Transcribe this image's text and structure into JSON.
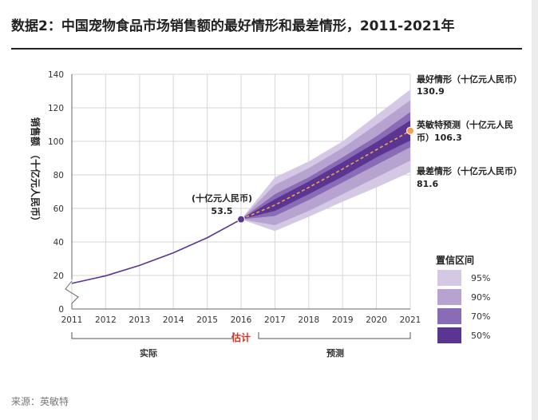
{
  "title": "数据2：中国宠物食品市场销售额的最好情形和最差情形，2011-2021年",
  "source": "来源：英敏特",
  "chart_data": {
    "type": "line",
    "title": "数据2：中国宠物食品市场销售额的最好情形和最差情形，2011-2021年",
    "ylabel": "销售额 （十亿元人民币）",
    "ylim": [
      0,
      140
    ],
    "yticks": [
      0,
      20,
      40,
      60,
      80,
      100,
      120,
      140
    ],
    "x": [
      2011,
      2012,
      2013,
      2014,
      2015,
      2016,
      2017,
      2018,
      2019,
      2020,
      2021
    ],
    "actual": {
      "name": "实际",
      "x": [
        2011,
        2012,
        2013,
        2014,
        2015,
        2016
      ],
      "values": [
        15.3,
        19.8,
        26.0,
        33.5,
        42.5,
        53.5
      ]
    },
    "forecast": {
      "name": "英敏特预测",
      "x": [
        2016,
        2017,
        2018,
        2019,
        2020,
        2021
      ],
      "values": [
        53.5,
        62.0,
        72.5,
        83.5,
        95.0,
        106.3
      ]
    },
    "fan_bands": [
      {
        "level": "95%",
        "color": "#d4c8e4",
        "upper": [
          53.5,
          78.5,
          88.0,
          100.0,
          115.5,
          130.9
        ],
        "lower": [
          53.5,
          46.5,
          55.0,
          64.0,
          72.5,
          81.6
        ]
      },
      {
        "level": "90%",
        "color": "#b7a3d0",
        "upper": [
          53.5,
          74.0,
          84.0,
          96.0,
          110.0,
          124.5
        ],
        "lower": [
          53.5,
          50.0,
          58.5,
          68.5,
          78.5,
          88.5
        ]
      },
      {
        "level": "70%",
        "color": "#8a6bb5",
        "upper": [
          53.5,
          68.5,
          78.5,
          90.5,
          103.0,
          117.5
        ],
        "lower": [
          53.5,
          55.5,
          65.0,
          75.5,
          86.0,
          96.5
        ]
      },
      {
        "level": "50%",
        "color": "#5a3591",
        "upper": [
          53.5,
          65.5,
          76.0,
          87.5,
          99.5,
          112.5
        ],
        "lower": [
          53.5,
          58.5,
          68.5,
          79.0,
          90.5,
          100.5
        ]
      }
    ],
    "legend": {
      "title": "置信区间",
      "items": [
        {
          "label": "95%",
          "color": "#d4c8e4"
        },
        {
          "label": "90%",
          "color": "#b7a3d0"
        },
        {
          "label": "70%",
          "color": "#8a6bb5"
        },
        {
          "label": "50%",
          "color": "#5a3591"
        }
      ]
    },
    "annotations": {
      "start_unit": "(十亿元人民币)",
      "start_value": "53.5",
      "best_label": "最好情形（十亿元人民币）",
      "best_value": "130.9",
      "forecast_label_1": "英敏特预测（十亿元人民",
      "forecast_label_2": "币）106.3",
      "worst_label": "最差情形（十亿元人民币）",
      "worst_value": "81.6"
    },
    "segments": {
      "actual": "实际",
      "estimate": "估计",
      "forecast": "预测"
    },
    "colors": {
      "actual_line": "#5a3591",
      "forecast_line": "#f0a050",
      "estimate_text": "#e0301e",
      "point": "#5a3591",
      "end_point": "#f0a050"
    }
  }
}
